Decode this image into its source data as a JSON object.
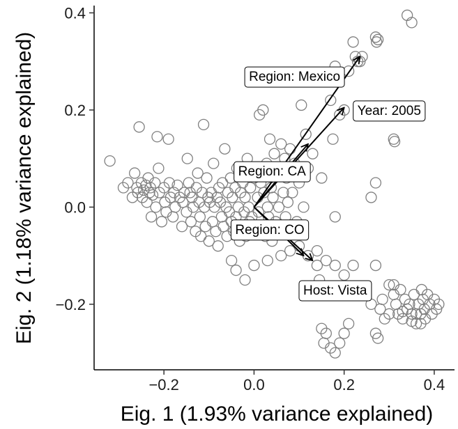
{
  "chart_data": {
    "type": "scatter",
    "title": "",
    "xlabel": "Eig. 1 (1.93% variance explained)",
    "ylabel": "Eig. 2 (1.18% variance explained)",
    "xlim": [
      -0.355,
      0.445
    ],
    "ylim": [
      -0.335,
      0.415
    ],
    "xticks": [
      -0.2,
      0.0,
      0.2,
      0.4
    ],
    "xtick_labels": [
      "−0.2",
      "0.0",
      "0.2",
      "0.4"
    ],
    "yticks": [
      -0.2,
      0.0,
      0.2,
      0.4
    ],
    "ytick_labels": [
      "−0.2",
      "0.0",
      "0.2",
      "0.4"
    ],
    "grid": false,
    "marker": "open-circle",
    "marker_color": "#808080",
    "points": [
      [
        -0.32,
        0.095
      ],
      [
        -0.29,
        0.04
      ],
      [
        -0.28,
        0.05
      ],
      [
        -0.27,
        0.02
      ],
      [
        -0.265,
        0.07
      ],
      [
        -0.26,
        0.04
      ],
      [
        -0.258,
        0.03
      ],
      [
        -0.255,
        0.165
      ],
      [
        -0.25,
        0.05
      ],
      [
        -0.248,
        0.02
      ],
      [
        -0.245,
        0.035
      ],
      [
        -0.24,
        0.045
      ],
      [
        -0.238,
        0.01
      ],
      [
        -0.235,
        0.06
      ],
      [
        -0.232,
        0.03
      ],
      [
        -0.23,
        0.04
      ],
      [
        -0.228,
        -0.02
      ],
      [
        -0.225,
        0.025
      ],
      [
        -0.22,
        0.05
      ],
      [
        -0.218,
        0.0
      ],
      [
        -0.215,
        0.145
      ],
      [
        -0.212,
        0.08
      ],
      [
        -0.21,
        0.03
      ],
      [
        -0.205,
        -0.03
      ],
      [
        -0.2,
        0.04
      ],
      [
        -0.198,
        0.01
      ],
      [
        -0.195,
        -0.01
      ],
      [
        -0.19,
        0.14
      ],
      [
        -0.188,
        0.05
      ],
      [
        -0.185,
        0.02
      ],
      [
        -0.18,
        -0.02
      ],
      [
        -0.178,
        0.03
      ],
      [
        -0.175,
        0.0
      ],
      [
        -0.17,
        0.045
      ],
      [
        -0.165,
        0.02
      ],
      [
        -0.16,
        -0.04
      ],
      [
        -0.158,
        0.01
      ],
      [
        -0.155,
        0.03
      ],
      [
        -0.15,
        -0.01
      ],
      [
        -0.148,
        0.1
      ],
      [
        -0.145,
        0.05
      ],
      [
        -0.142,
        0.03
      ],
      [
        -0.14,
        -0.03
      ],
      [
        -0.138,
        0.02
      ],
      [
        -0.135,
        0.0
      ],
      [
        -0.13,
        -0.05
      ],
      [
        -0.128,
        0.04
      ],
      [
        -0.125,
        0.07
      ],
      [
        -0.122,
        0.01
      ],
      [
        -0.12,
        -0.02
      ],
      [
        -0.118,
        -0.06
      ],
      [
        -0.115,
        0.03
      ],
      [
        -0.112,
        0.17
      ],
      [
        -0.11,
        0.0
      ],
      [
        -0.108,
        -0.04
      ],
      [
        -0.105,
        0.06
      ],
      [
        -0.102,
        0.02
      ],
      [
        -0.1,
        -0.07
      ],
      [
        -0.098,
        0.01
      ],
      [
        -0.095,
        0.03
      ],
      [
        -0.092,
        -0.03
      ],
      [
        -0.09,
        0.09
      ],
      [
        -0.088,
        0.0
      ],
      [
        -0.085,
        -0.05
      ],
      [
        -0.082,
        0.02
      ],
      [
        -0.08,
        -0.08
      ],
      [
        -0.078,
        0.04
      ],
      [
        -0.075,
        0.01
      ],
      [
        -0.072,
        -0.02
      ],
      [
        -0.07,
        0.05
      ],
      [
        -0.068,
        -0.04
      ],
      [
        -0.065,
        0.12
      ],
      [
        -0.062,
        0.0
      ],
      [
        -0.06,
        -0.06
      ],
      [
        -0.058,
        0.03
      ],
      [
        -0.055,
        -0.01
      ],
      [
        -0.052,
        0.06
      ],
      [
        -0.05,
        -0.03
      ],
      [
        -0.048,
        0.02
      ],
      [
        -0.045,
        -0.05
      ],
      [
        -0.042,
        0.04
      ],
      [
        -0.04,
        -0.02
      ],
      [
        -0.038,
        0.08
      ],
      [
        -0.035,
        0.0
      ],
      [
        -0.032,
        -0.07
      ],
      [
        -0.03,
        0.03
      ],
      [
        -0.028,
        -0.04
      ],
      [
        -0.025,
        0.05
      ],
      [
        -0.022,
        -0.01
      ],
      [
        -0.02,
        0.02
      ],
      [
        -0.018,
        -0.06
      ],
      [
        -0.015,
        0.1
      ],
      [
        -0.012,
        0.0
      ],
      [
        -0.01,
        -0.03
      ],
      [
        -0.008,
        0.04
      ],
      [
        -0.005,
        -0.02
      ],
      [
        0.0,
        0.06
      ],
      [
        0.005,
        -0.05
      ],
      [
        0.008,
        0.02
      ],
      [
        0.01,
        -0.01
      ],
      [
        0.012,
        0.19
      ],
      [
        0.015,
        0.05
      ],
      [
        0.018,
        -0.04
      ],
      [
        0.02,
        0.2
      ],
      [
        0.022,
        0.03
      ],
      [
        0.025,
        -0.06
      ],
      [
        0.028,
        0.09
      ],
      [
        0.03,
        0.0
      ],
      [
        0.032,
        -0.02
      ],
      [
        0.035,
        0.14
      ],
      [
        0.038,
        0.04
      ],
      [
        0.04,
        -0.07
      ],
      [
        0.042,
        0.02
      ],
      [
        0.045,
        0.11
      ],
      [
        0.048,
        -0.03
      ],
      [
        0.05,
        0.07
      ],
      [
        0.055,
        0.0
      ],
      [
        0.06,
        0.13
      ],
      [
        0.062,
        -0.05
      ],
      [
        0.065,
        0.03
      ],
      [
        0.068,
        0.1
      ],
      [
        0.07,
        -0.02
      ],
      [
        0.072,
        0.06
      ],
      [
        0.075,
        0.01
      ],
      [
        0.078,
        -0.04
      ],
      [
        0.08,
        0.12
      ],
      [
        0.085,
        0.03
      ],
      [
        0.09,
        0.09
      ],
      [
        0.095,
        -0.03
      ],
      [
        0.1,
        0.05
      ],
      [
        0.105,
        0.21
      ],
      [
        0.11,
        0.0
      ],
      [
        0.115,
        0.15
      ],
      [
        0.12,
        0.08
      ],
      [
        0.13,
        0.11
      ],
      [
        0.14,
        -0.12
      ],
      [
        0.145,
        -0.15
      ],
      [
        0.15,
        0.06
      ],
      [
        0.17,
        0.22
      ],
      [
        0.175,
        0.14
      ],
      [
        0.18,
        -0.02
      ],
      [
        0.19,
        0.19
      ],
      [
        0.2,
        0.2
      ],
      [
        0.21,
        0.28
      ],
      [
        0.22,
        0.34
      ],
      [
        0.225,
        0.31
      ],
      [
        0.23,
        0.3
      ],
      [
        0.235,
        0.3
      ],
      [
        0.24,
        0.31
      ],
      [
        0.18,
        0.29
      ],
      [
        0.27,
        0.35
      ],
      [
        0.272,
        0.34
      ],
      [
        0.275,
        0.345
      ],
      [
        0.34,
        0.395
      ],
      [
        0.35,
        0.38
      ],
      [
        0.25,
        0.19
      ],
      [
        0.27,
        0.05
      ],
      [
        0.26,
        0.02
      ],
      [
        0.31,
        0.14
      ],
      [
        0.312,
        0.135
      ],
      [
        -0.05,
        -0.11
      ],
      [
        -0.04,
        -0.13
      ],
      [
        -0.02,
        -0.15
      ],
      [
        0.0,
        -0.12
      ],
      [
        0.03,
        -0.11
      ],
      [
        0.06,
        -0.1
      ],
      [
        0.08,
        -0.09
      ],
      [
        0.1,
        -0.08
      ],
      [
        0.12,
        -0.1
      ],
      [
        0.14,
        -0.09
      ],
      [
        0.16,
        -0.11
      ],
      [
        0.18,
        -0.12
      ],
      [
        0.2,
        -0.14
      ],
      [
        0.22,
        -0.12
      ],
      [
        0.24,
        -0.18
      ],
      [
        0.26,
        -0.2
      ],
      [
        0.27,
        -0.12
      ],
      [
        0.28,
        -0.21
      ],
      [
        0.3,
        -0.16
      ],
      [
        0.31,
        -0.18
      ],
      [
        0.315,
        -0.2
      ],
      [
        0.32,
        -0.22
      ],
      [
        0.325,
        -0.17
      ],
      [
        0.33,
        -0.23
      ],
      [
        0.335,
        -0.19
      ],
      [
        0.34,
        -0.21
      ],
      [
        0.345,
        -0.2
      ],
      [
        0.35,
        -0.22
      ],
      [
        0.355,
        -0.18
      ],
      [
        0.36,
        -0.24
      ],
      [
        0.365,
        -0.2
      ],
      [
        0.37,
        -0.22
      ],
      [
        0.372,
        -0.17
      ],
      [
        0.375,
        -0.19
      ],
      [
        0.378,
        -0.21
      ],
      [
        0.38,
        -0.23
      ],
      [
        0.385,
        -0.18
      ],
      [
        0.39,
        -0.2
      ],
      [
        0.395,
        -0.22
      ],
      [
        0.4,
        -0.19
      ],
      [
        0.405,
        -0.21
      ],
      [
        0.41,
        -0.2
      ],
      [
        0.3,
        -0.22
      ],
      [
        0.29,
        -0.23
      ],
      [
        0.285,
        -0.19
      ],
      [
        0.31,
        -0.16
      ],
      [
        0.36,
        -0.22
      ],
      [
        0.37,
        -0.24
      ],
      [
        0.33,
        -0.215
      ],
      [
        0.35,
        -0.235
      ],
      [
        0.15,
        -0.25
      ],
      [
        0.155,
        -0.28
      ],
      [
        0.16,
        -0.26
      ],
      [
        0.17,
        -0.29
      ],
      [
        0.18,
        -0.3
      ],
      [
        0.19,
        -0.28
      ],
      [
        0.2,
        -0.26
      ],
      [
        0.21,
        -0.24
      ],
      [
        0.27,
        -0.26
      ],
      [
        0.275,
        -0.27
      ]
    ],
    "arrows": [
      {
        "label": "Region: Mexico",
        "x": 0.235,
        "y": 0.31
      },
      {
        "label": "Year: 2005",
        "x": 0.2,
        "y": 0.205
      },
      {
        "label": "Region: CA",
        "x": 0.12,
        "y": 0.13
      },
      {
        "label": "Region: CO",
        "x": 0.13,
        "y": -0.11
      },
      {
        "label": "Host: Vista",
        "x": 0.11,
        "y": -0.1
      }
    ],
    "arrow_labels": [
      {
        "label": "Region: Mexico",
        "x": 0.09,
        "y": 0.27
      },
      {
        "label": "Year: 2005",
        "x": 0.3,
        "y": 0.2
      },
      {
        "label": "Region: CA",
        "x": 0.04,
        "y": 0.075
      },
      {
        "label": "Region: CO",
        "x": 0.035,
        "y": -0.045
      },
      {
        "label": "Host: Vista",
        "x": 0.18,
        "y": -0.17
      }
    ]
  }
}
